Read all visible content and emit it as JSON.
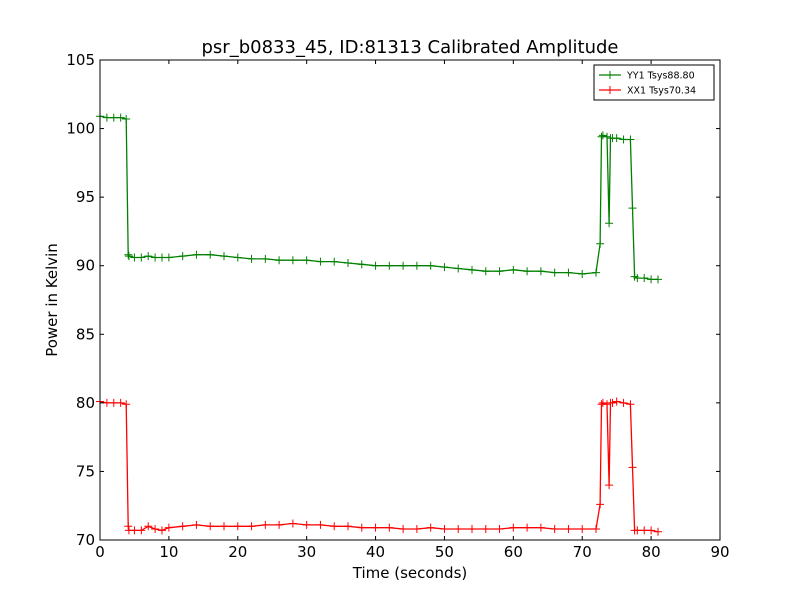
{
  "chart_data": {
    "type": "line",
    "title": "psr_b0833_45, ID:81313 Calibrated Amplitude",
    "xlabel": "Time (seconds)",
    "ylabel": "Power in Kelvin",
    "xlim": [
      0,
      90
    ],
    "ylim": [
      70,
      105
    ],
    "xticks": [
      "0",
      "10",
      "20",
      "30",
      "40",
      "50",
      "60",
      "70",
      "80",
      "90"
    ],
    "yticks": [
      "70",
      "75",
      "80",
      "85",
      "90",
      "95",
      "100",
      "105"
    ],
    "grid": false,
    "legend_position": "top-right",
    "series": [
      {
        "name": "YY1 Tsys88.80",
        "color": "#008000",
        "marker": "+",
        "x": [
          0,
          1,
          2,
          3,
          3.8,
          4.1,
          4.2,
          5,
          6,
          7,
          8,
          9,
          10,
          12,
          14,
          16,
          18,
          20,
          22,
          24,
          26,
          28,
          30,
          32,
          34,
          36,
          38,
          40,
          42,
          44,
          46,
          48,
          50,
          52,
          54,
          56,
          58,
          60,
          62,
          64,
          66,
          68,
          70,
          72,
          72.6,
          72.8,
          73,
          73.6,
          73.9,
          74.1,
          74.4,
          75,
          76,
          77,
          77.3,
          77.6,
          78,
          79,
          80,
          81
        ],
        "y": [
          100.9,
          100.8,
          100.8,
          100.8,
          100.7,
          90.8,
          90.7,
          90.6,
          90.6,
          90.7,
          90.6,
          90.6,
          90.6,
          90.7,
          90.8,
          90.8,
          90.7,
          90.6,
          90.5,
          90.5,
          90.4,
          90.4,
          90.4,
          90.3,
          90.3,
          90.2,
          90.1,
          90.0,
          90.0,
          90.0,
          90.0,
          90.0,
          89.9,
          89.8,
          89.7,
          89.6,
          89.6,
          89.7,
          89.6,
          89.6,
          89.5,
          89.5,
          89.4,
          89.5,
          91.6,
          99.4,
          99.5,
          99.4,
          93.1,
          99.3,
          99.3,
          99.3,
          99.2,
          99.2,
          94.2,
          89.2,
          89.1,
          89.1,
          89.0,
          89.0
        ]
      },
      {
        "name": "XX1 Tsys70.34",
        "color": "#ff0000",
        "marker": "+",
        "x": [
          0,
          1,
          2,
          3,
          3.8,
          4.1,
          4.2,
          5,
          6,
          7,
          8,
          9,
          10,
          12,
          14,
          16,
          18,
          20,
          22,
          24,
          26,
          28,
          30,
          32,
          34,
          36,
          38,
          40,
          42,
          44,
          46,
          48,
          50,
          52,
          54,
          56,
          58,
          60,
          62,
          64,
          66,
          68,
          70,
          72,
          72.6,
          72.8,
          73,
          73.6,
          73.9,
          74.1,
          74.4,
          75,
          76,
          77,
          77.3,
          77.6,
          78,
          79,
          80,
          81
        ],
        "y": [
          80.1,
          80.0,
          80.0,
          80.0,
          79.9,
          71.0,
          70.7,
          70.7,
          70.7,
          71.0,
          70.8,
          70.7,
          70.9,
          71.0,
          71.1,
          71.0,
          71.0,
          71.0,
          71.0,
          71.1,
          71.1,
          71.2,
          71.1,
          71.1,
          71.0,
          71.0,
          70.9,
          70.9,
          70.9,
          70.8,
          70.8,
          70.9,
          70.8,
          70.8,
          70.8,
          70.8,
          70.8,
          70.9,
          70.9,
          70.9,
          70.8,
          70.8,
          70.8,
          70.8,
          72.6,
          79.9,
          80.0,
          79.9,
          74.0,
          80.0,
          80.0,
          80.1,
          80.0,
          79.9,
          75.3,
          70.7,
          70.7,
          70.7,
          70.7,
          70.6
        ]
      }
    ]
  }
}
